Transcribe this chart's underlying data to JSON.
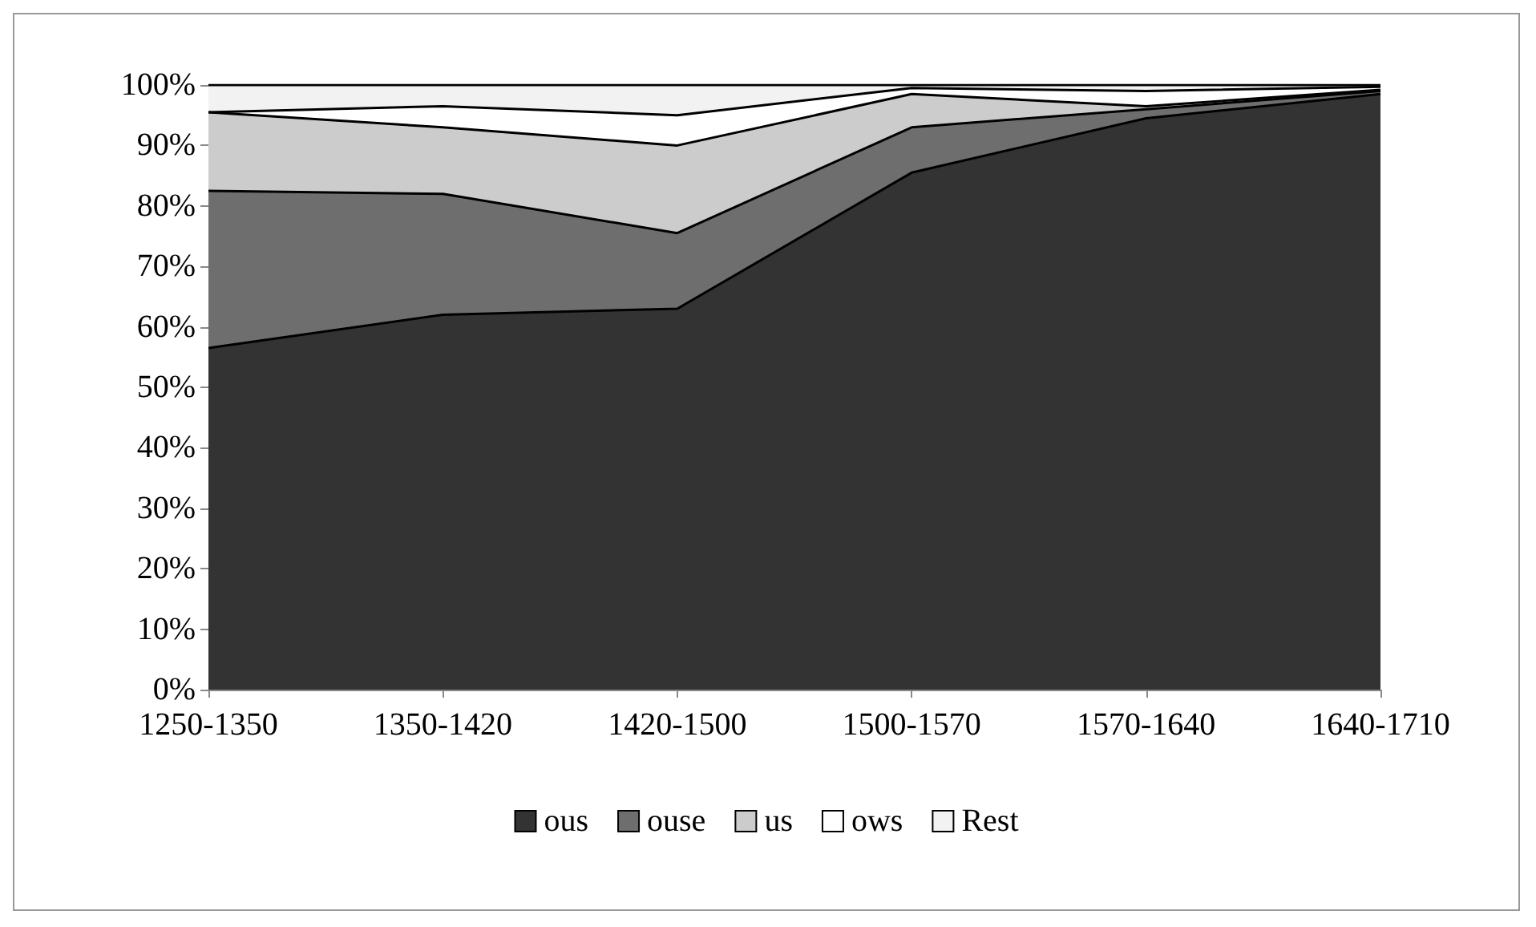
{
  "chart_data": {
    "type": "area",
    "stacked": true,
    "categories": [
      "1250-1350",
      "1350-1420",
      "1420-1500",
      "1500-1570",
      "1570-1640",
      "1640-1710"
    ],
    "series": [
      {
        "name": "ous",
        "color": "#333333",
        "values": [
          56.5,
          62,
          63,
          85.5,
          94.5,
          98.5
        ]
      },
      {
        "name": "ouse",
        "color": "#6e6e6e",
        "values": [
          26,
          20,
          12.5,
          7.5,
          1.5,
          0.5
        ]
      },
      {
        "name": "us",
        "color": "#cccccc",
        "values": [
          13,
          11,
          14.5,
          5.5,
          0.5,
          0.2
        ]
      },
      {
        "name": "ows",
        "color": "#ffffff",
        "values": [
          0,
          3.5,
          5,
          1,
          2.5,
          0.5
        ]
      },
      {
        "name": "Rest",
        "color": "#f2f2f2",
        "values": [
          4.5,
          3.5,
          5,
          0.5,
          1,
          0.3
        ]
      }
    ],
    "ylim": [
      0,
      100
    ],
    "yticks": [
      {
        "value": 0,
        "label": "0%"
      },
      {
        "value": 10,
        "label": "10%"
      },
      {
        "value": 20,
        "label": "20%"
      },
      {
        "value": 30,
        "label": "30%"
      },
      {
        "value": 40,
        "label": "40%"
      },
      {
        "value": 50,
        "label": "50%"
      },
      {
        "value": 60,
        "label": "60%"
      },
      {
        "value": 70,
        "label": "70%"
      },
      {
        "value": 80,
        "label": "80%"
      },
      {
        "value": 90,
        "label": "90%"
      },
      {
        "value": 100,
        "label": "100%"
      }
    ],
    "grid": false,
    "legend": "bottom"
  }
}
